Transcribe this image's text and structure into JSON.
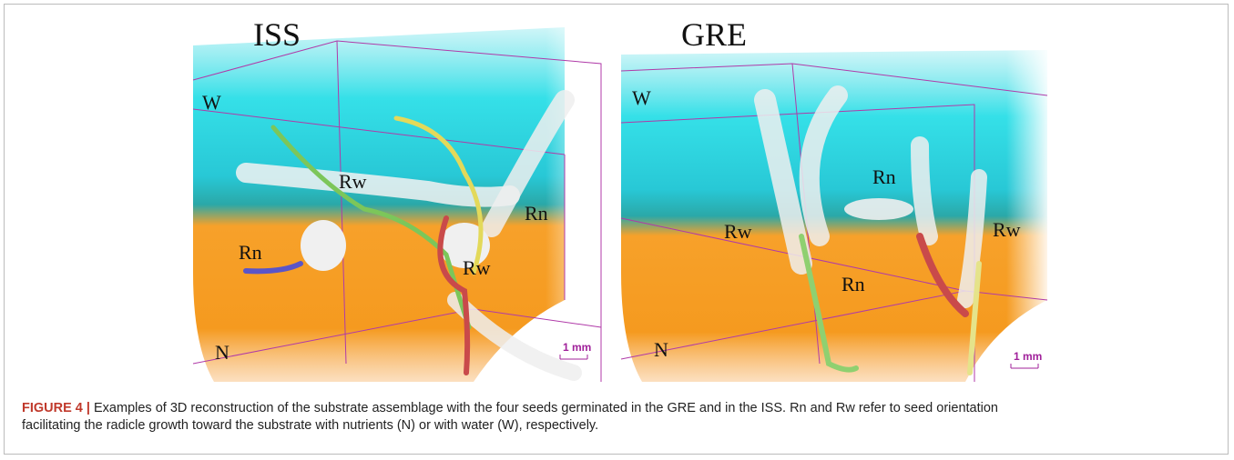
{
  "figure": {
    "panels": [
      {
        "title": "ISS",
        "labels": [
          "W",
          "Rw",
          "Rn",
          "Rn",
          "Rw",
          "N"
        ],
        "scale": "1 mm"
      },
      {
        "title": "GRE",
        "labels": [
          "W",
          "Rn",
          "Rw",
          "Rw",
          "Rn",
          "N"
        ],
        "scale": "1 mm"
      }
    ],
    "caption": {
      "label": "FIGURE 4 |",
      "text": "Examples of 3D reconstruction of the substrate assemblage with the four seeds germinated in the GRE and in the ISS. Rn and Rw refer to seed orientation facilitating the radicle growth toward the substrate with nutrients (N) or with water (W), respectively."
    }
  }
}
